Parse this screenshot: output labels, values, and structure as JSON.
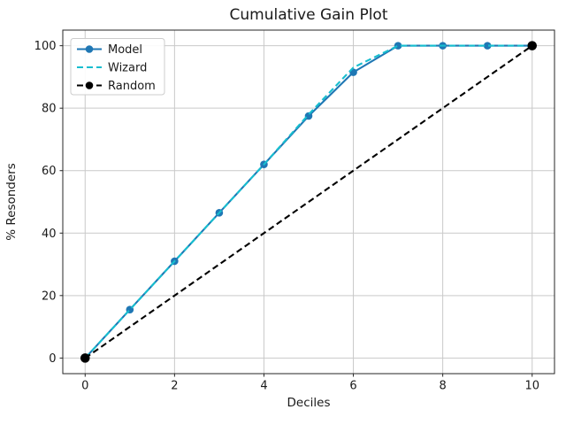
{
  "chart_data": {
    "type": "line",
    "title": "Cumulative Gain Plot",
    "xlabel": "Deciles",
    "ylabel": "% Resonders",
    "x": [
      0,
      1,
      2,
      3,
      4,
      5,
      6,
      7,
      8,
      9,
      10
    ],
    "xlim": [
      -0.5,
      10.5
    ],
    "ylim": [
      -5,
      105
    ],
    "xticks": [
      0,
      2,
      4,
      6,
      8,
      10
    ],
    "yticks": [
      0,
      20,
      40,
      60,
      80,
      100
    ],
    "grid": true,
    "legend_position": "upper-left",
    "series": [
      {
        "name": "Model",
        "color": "#1f77b4",
        "line_style": "solid",
        "marker": "circle",
        "markers_at": "all",
        "values": [
          0,
          15.5,
          31,
          46.5,
          62,
          77.5,
          91.5,
          100,
          100,
          100,
          100
        ]
      },
      {
        "name": "Wizard",
        "color": "#17becf",
        "line_style": "dashed",
        "marker": "none",
        "markers_at": "none",
        "values": [
          0,
          15.5,
          31,
          46.5,
          62,
          78,
          93,
          100,
          100,
          100,
          100
        ]
      },
      {
        "name": "Random",
        "color": "#000000",
        "line_style": "dashed",
        "marker": "circle",
        "markers_at": "ends",
        "x": [
          0,
          10
        ],
        "values": [
          0,
          100
        ]
      }
    ],
    "style": {
      "grid_color": "#c9c9c9",
      "spine_color": "#262626",
      "background": "#ffffff",
      "legend_border": "#cccccc"
    }
  }
}
